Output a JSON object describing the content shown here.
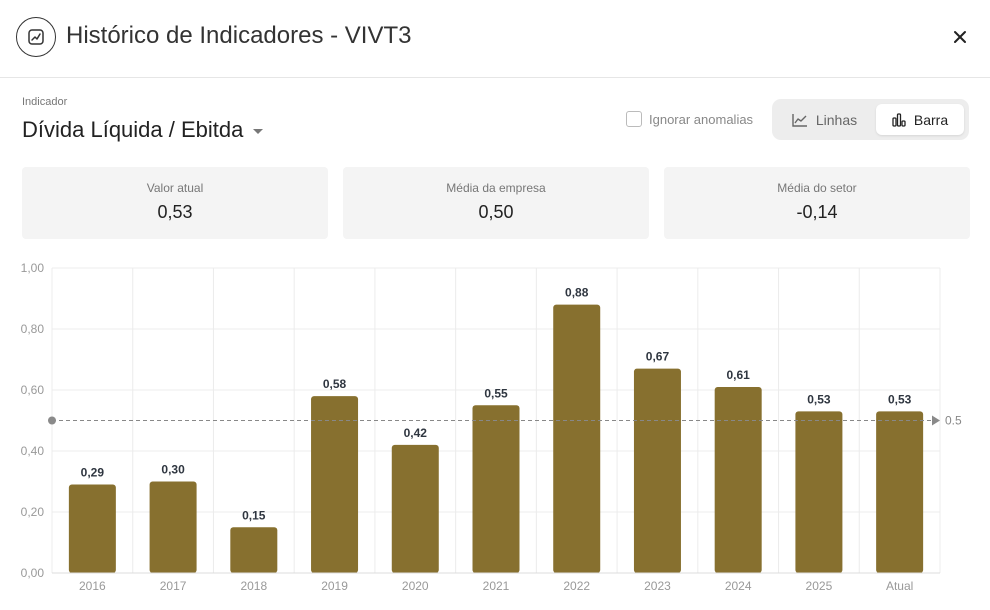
{
  "header": {
    "title": "Histórico de Indicadores - VIVT3",
    "icon": "chart-icon",
    "close_icon": "close-icon"
  },
  "indicator": {
    "label": "Indicador",
    "selected": "Dívida Líquida / Ebitda"
  },
  "options": {
    "ignore_anomalies_label": "Ignorar anomalias",
    "ignore_anomalies_checked": false
  },
  "view_toggle": {
    "lines_label": "Linhas",
    "bar_label": "Barra",
    "active": "bar"
  },
  "cards": [
    {
      "label": "Valor atual",
      "value": "0,53"
    },
    {
      "label": "Média da empresa",
      "value": "0,50"
    },
    {
      "label": "Média do setor",
      "value": "-0,14"
    }
  ],
  "chart_data": {
    "type": "bar",
    "categories": [
      "2016",
      "2017",
      "2018",
      "2019",
      "2020",
      "2021",
      "2022",
      "2023",
      "2024",
      "2025",
      "Atual"
    ],
    "values": [
      0.29,
      0.3,
      0.15,
      0.58,
      0.42,
      0.55,
      0.88,
      0.67,
      0.61,
      0.53,
      0.53
    ],
    "value_labels": [
      "0,29",
      "0,30",
      "0,15",
      "0,58",
      "0,42",
      "0,55",
      "0,88",
      "0,67",
      "0,61",
      "0,53",
      "0,53"
    ],
    "ylim": [
      0,
      1
    ],
    "yticks": [
      0,
      0.2,
      0.4,
      0.6,
      0.8,
      1.0
    ],
    "ytick_labels": [
      "0,00",
      "0,20",
      "0,40",
      "0,60",
      "0,80",
      "1,00"
    ],
    "reference_line": {
      "value": 0.5,
      "label": "0.5"
    },
    "bar_color": "#87702f",
    "grid": true
  }
}
